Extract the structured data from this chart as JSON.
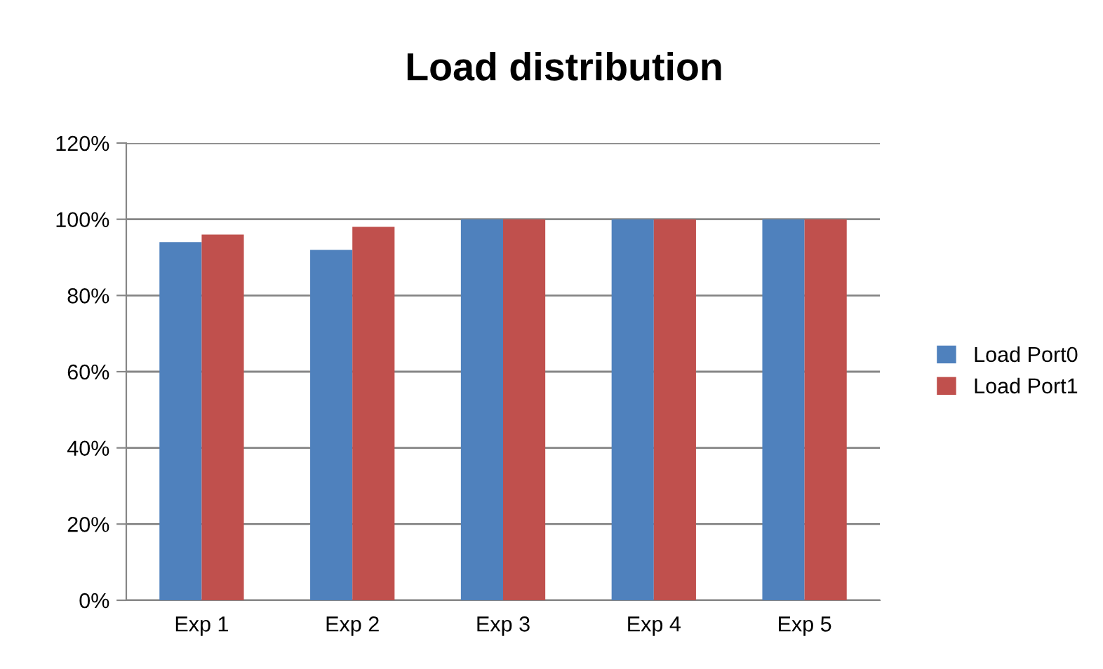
{
  "chart_data": {
    "type": "bar",
    "title": "Load distribution",
    "categories": [
      "Exp 1",
      "Exp 2",
      "Exp 3",
      "Exp 4",
      "Exp 5"
    ],
    "series": [
      {
        "name": "Load Port0",
        "color": "#4f81bd",
        "values": [
          94,
          92,
          100,
          100,
          100
        ]
      },
      {
        "name": "Load Port1",
        "color": "#c0504d",
        "values": [
          96,
          98,
          100,
          100,
          100
        ]
      }
    ],
    "ylim": [
      0,
      120
    ],
    "yticks": [
      {
        "value": 0,
        "label": "0%"
      },
      {
        "value": 20,
        "label": "20%"
      },
      {
        "value": 40,
        "label": "40%"
      },
      {
        "value": 60,
        "label": "60%"
      },
      {
        "value": 80,
        "label": "80%"
      },
      {
        "value": 100,
        "label": "100%"
      },
      {
        "value": 120,
        "label": "120%"
      }
    ],
    "grid": "y",
    "legend": "right"
  }
}
